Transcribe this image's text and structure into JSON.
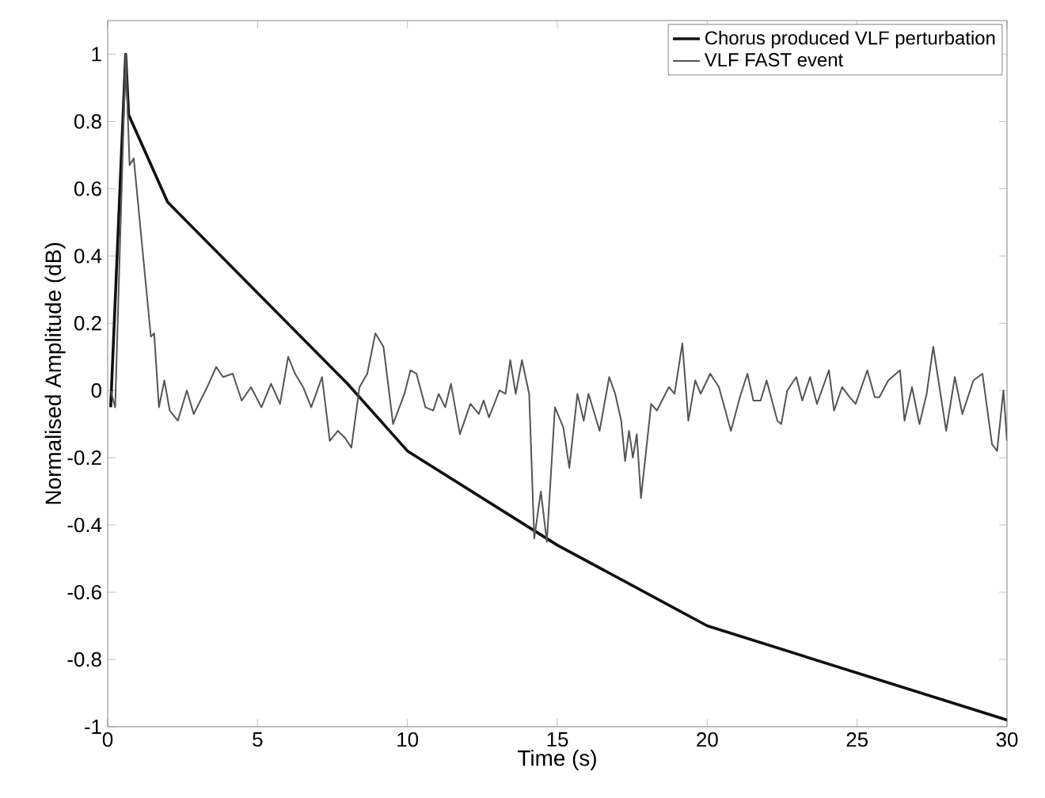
{
  "chart_data": {
    "type": "line",
    "xlabel": "Time (s)",
    "ylabel": "Normalised Amplitude (dB)",
    "xlim": [
      0,
      30
    ],
    "ylim": [
      -1,
      1.1
    ],
    "xticks": [
      0,
      5,
      10,
      15,
      20,
      25,
      30
    ],
    "yticks": [
      -1,
      -0.8,
      -0.6,
      -0.4,
      -0.2,
      0,
      0.2,
      0.4,
      0.6,
      0.8,
      1
    ],
    "grid": false,
    "legend": "top right",
    "marker": "none",
    "line_style": "solid",
    "series": [
      {
        "name": "Chorus produced VLF perturbation",
        "color": "#111111",
        "x": [
          0.1,
          0.6,
          0.7,
          2,
          5,
          8,
          10,
          15,
          20,
          25,
          30
        ],
        "values": [
          -0.05,
          1.0,
          0.82,
          0.56,
          0.29,
          0.02,
          -0.18,
          -0.46,
          -0.7,
          -0.84,
          -0.98
        ]
      },
      {
        "name": "VLF FAST event",
        "color": "#555555",
        "x": [
          0.1,
          0.25,
          0.6,
          0.73,
          0.87,
          1.44,
          1.55,
          1.71,
          1.89,
          2.07,
          2.34,
          2.64,
          2.87,
          3.32,
          3.62,
          3.85,
          4.17,
          4.47,
          4.78,
          5.13,
          5.45,
          5.75,
          6.02,
          6.25,
          6.52,
          6.79,
          7.15,
          7.41,
          7.68,
          7.91,
          8.13,
          8.4,
          8.66,
          8.93,
          9.2,
          9.52,
          9.9,
          10.1,
          10.3,
          10.6,
          10.86,
          11.04,
          11.26,
          11.45,
          11.75,
          12.1,
          12.38,
          12.54,
          12.72,
          13.07,
          13.27,
          13.43,
          13.61,
          13.82,
          14.06,
          14.23,
          14.45,
          14.65,
          14.92,
          15.2,
          15.4,
          15.67,
          15.88,
          16.04,
          16.41,
          16.73,
          16.93,
          17.13,
          17.26,
          17.39,
          17.52,
          17.65,
          17.79,
          18.13,
          18.32,
          18.72,
          18.91,
          19.17,
          19.37,
          19.6,
          19.78,
          20.1,
          20.39,
          20.79,
          21.09,
          21.34,
          21.54,
          21.78,
          21.98,
          22.34,
          22.47,
          22.67,
          22.97,
          23.17,
          23.43,
          23.66,
          24.06,
          24.23,
          24.5,
          24.75,
          24.95,
          25.34,
          25.59,
          25.74,
          26.04,
          26.43,
          26.58,
          26.83,
          27.08,
          27.32,
          27.54,
          27.97,
          28.26,
          28.51,
          28.88,
          29.18,
          29.5,
          29.67,
          29.88,
          30.0
        ],
        "values": [
          0,
          -0.05,
          1.0,
          0.67,
          0.69,
          0.16,
          0.17,
          -0.05,
          0.03,
          -0.06,
          -0.09,
          0,
          -0.07,
          0.01,
          0.07,
          0.04,
          0.05,
          -0.03,
          0.01,
          -0.05,
          0.02,
          -0.04,
          0.1,
          0.05,
          0.01,
          -0.05,
          0.04,
          -0.15,
          -0.12,
          -0.14,
          -0.17,
          0.01,
          0.05,
          0.17,
          0.13,
          -0.1,
          -0.01,
          0.06,
          0.05,
          -0.05,
          -0.06,
          -0.01,
          -0.05,
          0.02,
          -0.13,
          -0.04,
          -0.07,
          -0.03,
          -0.08,
          0.0,
          -0.01,
          0.09,
          -0.01,
          0.09,
          -0.01,
          -0.44,
          -0.3,
          -0.45,
          -0.05,
          -0.11,
          -0.23,
          -0.01,
          -0.09,
          -0.01,
          -0.12,
          0.04,
          -0.01,
          -0.09,
          -0.21,
          -0.12,
          -0.2,
          -0.13,
          -0.32,
          -0.04,
          -0.06,
          0.01,
          -0.01,
          0.14,
          -0.09,
          0.03,
          -0.01,
          0.05,
          0.01,
          -0.12,
          -0.02,
          0.05,
          -0.03,
          -0.03,
          0.03,
          -0.09,
          -0.1,
          0.0,
          0.04,
          -0.03,
          0.04,
          -0.04,
          0.06,
          -0.06,
          0.01,
          -0.02,
          -0.04,
          0.06,
          -0.02,
          -0.02,
          0.03,
          0.06,
          -0.09,
          0.01,
          -0.1,
          -0.01,
          0.13,
          -0.12,
          0.04,
          -0.07,
          0.03,
          0.05,
          -0.16,
          -0.18,
          0.0,
          -0.15
        ]
      }
    ]
  }
}
